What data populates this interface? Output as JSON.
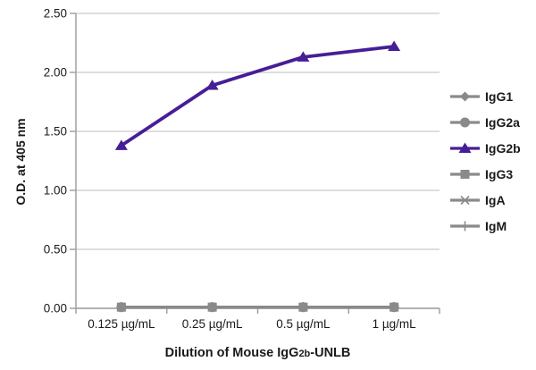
{
  "chart_data": {
    "type": "line",
    "title": "",
    "ylabel": "O.D. at 405 nm",
    "xlabel": "Dilution of Mouse IgG2b-UNLB",
    "xlabel_parts": [
      {
        "text": "Dilution of Mouse IgG",
        "small": false
      },
      {
        "text": "2b",
        "small": true
      },
      {
        "text": "-UNLB",
        "small": false
      }
    ],
    "categories": [
      "0.125 µg/mL",
      "0.25 µg/mL",
      "0.5 µg/mL",
      "1 µg/mL"
    ],
    "ylim": [
      0,
      2.5
    ],
    "ytick_labels": [
      "0.00",
      "0.50",
      "1.00",
      "1.50",
      "2.00",
      "2.50"
    ],
    "ytick_values": [
      0,
      0.5,
      1.0,
      1.5,
      2.0,
      2.5
    ],
    "grid": "horizontal",
    "legend_position": "right",
    "series": [
      {
        "name": "IgG1",
        "marker": "diamond",
        "color": "#8a8a8a",
        "values": [
          0.01,
          0.01,
          0.01,
          0.01
        ]
      },
      {
        "name": "IgG2a",
        "marker": "circle",
        "color": "#8a8a8a",
        "values": [
          0.01,
          0.01,
          0.01,
          0.01
        ]
      },
      {
        "name": "IgG2b",
        "marker": "triangle",
        "color": "#461e96",
        "values": [
          1.38,
          1.89,
          2.13,
          2.22
        ]
      },
      {
        "name": "IgG3",
        "marker": "square",
        "color": "#8a8a8a",
        "values": [
          0.01,
          0.01,
          0.01,
          0.01
        ]
      },
      {
        "name": "IgA",
        "marker": "asterisk",
        "color": "#8a8a8a",
        "values": [
          0.01,
          0.01,
          0.01,
          0.01
        ]
      },
      {
        "name": "IgM",
        "marker": "plus",
        "color": "#8a8a8a",
        "values": [
          0.01,
          0.01,
          0.01,
          0.01
        ]
      }
    ],
    "colors": {
      "grid": "#c9c9c9",
      "axis": "#9b9b9b",
      "text": "#1a1a1a",
      "accent": "#461e96",
      "muted_series": "#8a8a8a",
      "background": "#ffffff"
    }
  }
}
